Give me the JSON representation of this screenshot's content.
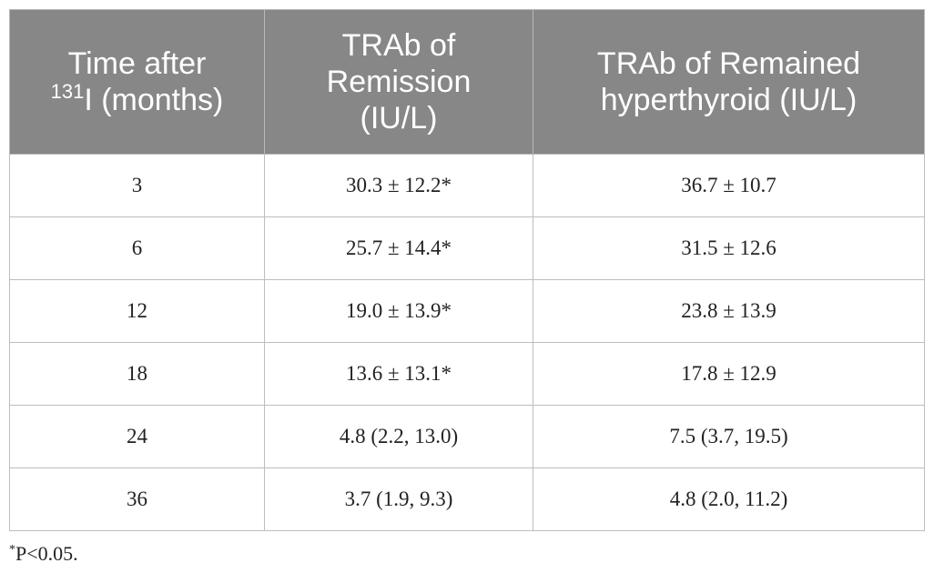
{
  "table": {
    "headers": {
      "time": {
        "pre": "Time after",
        "sup": "131",
        "post": "I (months)"
      },
      "remission": "TRAb of Remission (IU/L)",
      "remained": "TRAb of Remained hyperthyroid (IU/L)"
    },
    "rows": [
      {
        "time": "3",
        "remission": "30.3 ± 12.2*",
        "remained": "36.7 ± 10.7"
      },
      {
        "time": "6",
        "remission": "25.7 ± 14.4*",
        "remained": "31.5 ± 12.6"
      },
      {
        "time": "12",
        "remission": "19.0 ± 13.9*",
        "remained": "23.8 ± 13.9"
      },
      {
        "time": "18",
        "remission": "13.6 ± 13.1*",
        "remained": "17.8 ± 12.9"
      },
      {
        "time": "24",
        "remission": "4.8 (2.2, 13.0)",
        "remained": "7.5 (3.7, 19.5)"
      },
      {
        "time": "36",
        "remission": "3.7 (1.9, 9.3)",
        "remained": "4.8 (2.0, 11.2)"
      }
    ]
  },
  "footnote": {
    "mark": "*",
    "text": "P<0.05."
  },
  "colors": {
    "header_bg": "#878787",
    "header_text": "#ffffff",
    "grid": "#bdbdbd"
  }
}
